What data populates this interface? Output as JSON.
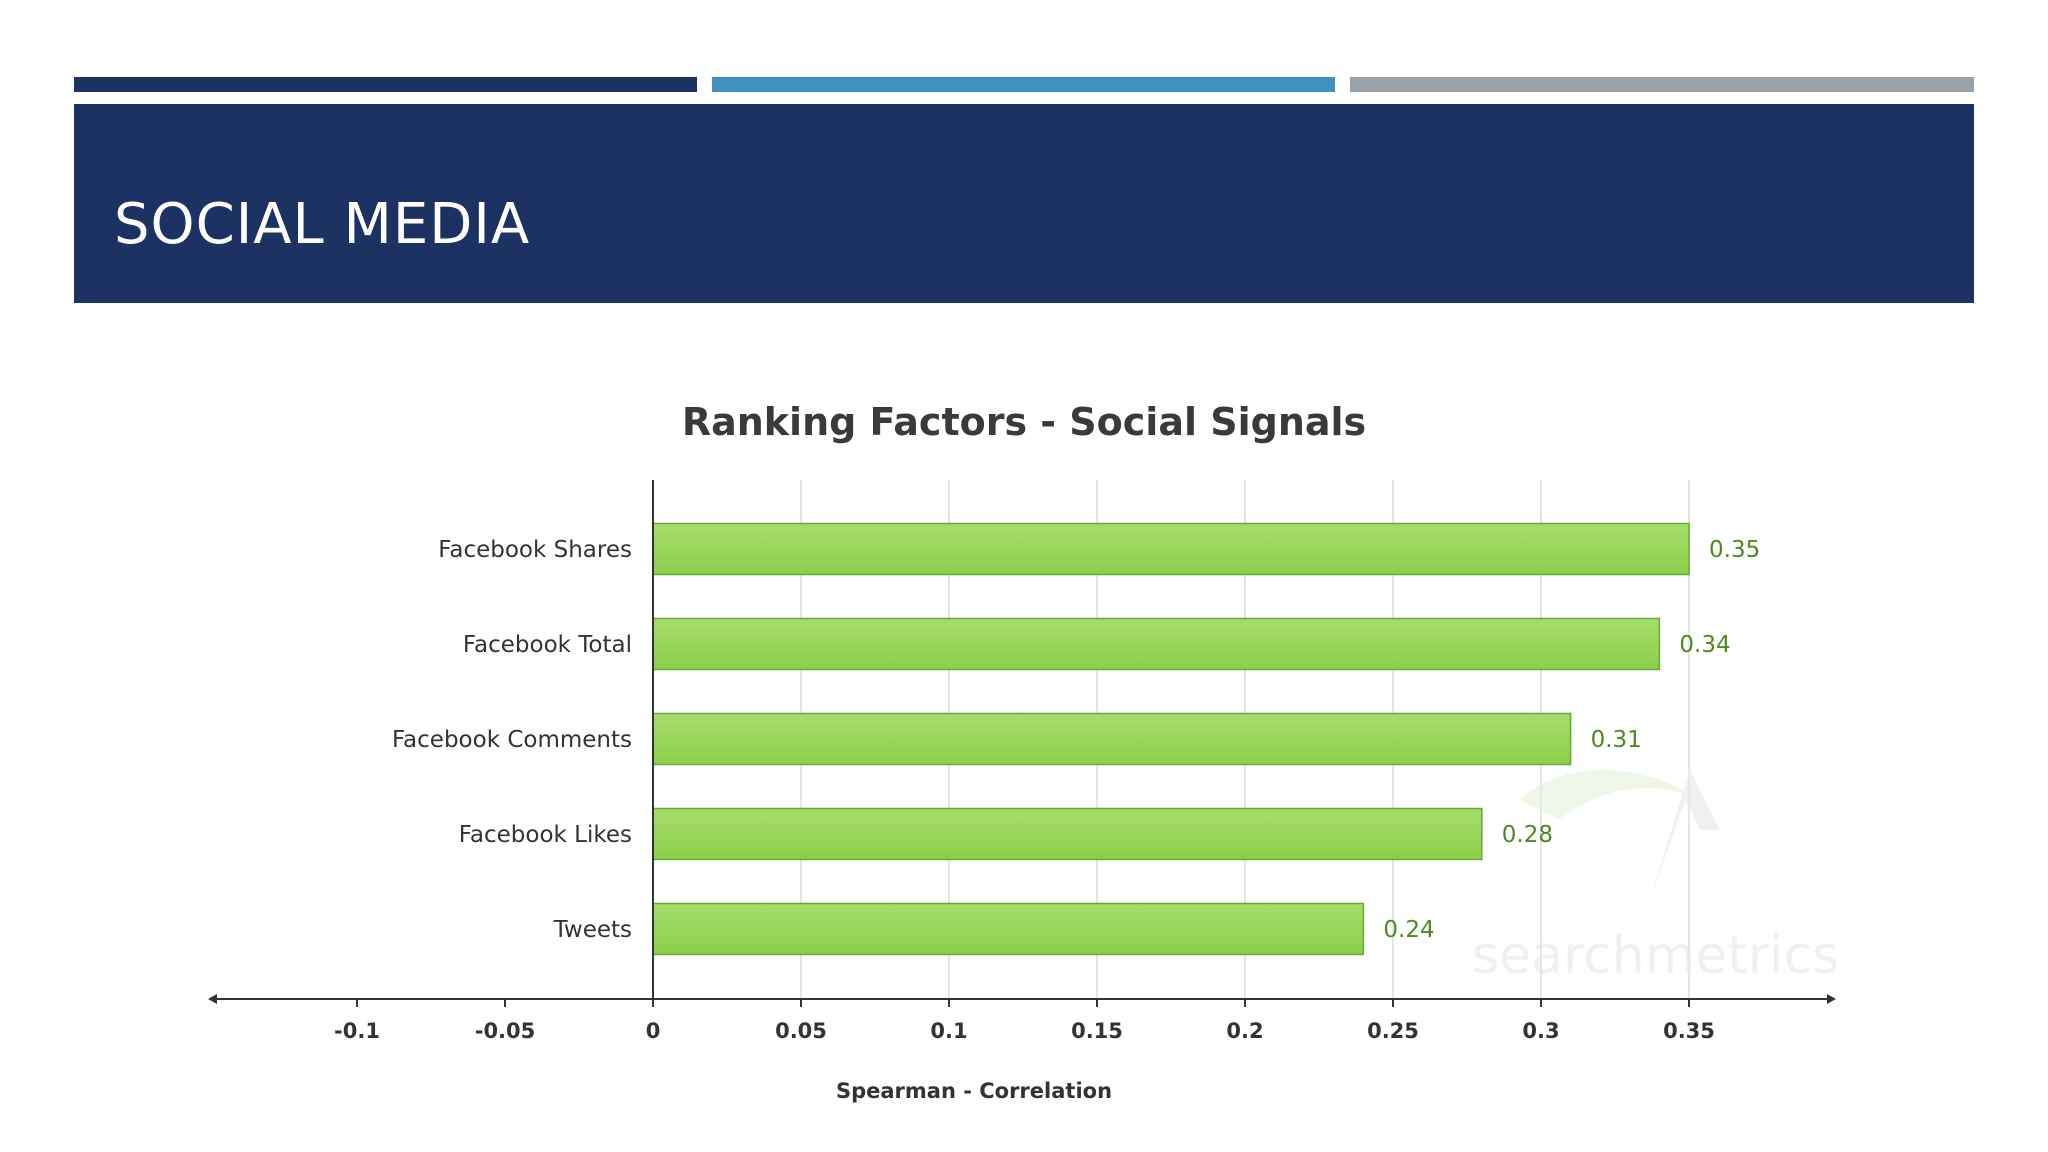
{
  "slide": {
    "title": "SOCIAL MEDIA",
    "colors": {
      "title_band": "#1c3263",
      "accent_dark": "#1c3263",
      "accent_blue": "#3f8fc0",
      "accent_gray": "#99a2a8"
    }
  },
  "chart_data": {
    "type": "bar",
    "orientation": "horizontal",
    "title": "Ranking Factors - Social Signals",
    "xlabel": "Spearman - Correlation",
    "ylabel": "",
    "categories": [
      "Facebook Shares",
      "Facebook Total",
      "Facebook Comments",
      "Facebook Likes",
      "Tweets"
    ],
    "values": [
      0.35,
      0.34,
      0.31,
      0.28,
      0.24
    ],
    "value_labels": [
      "0.35",
      "0.34",
      "0.31",
      "0.28",
      "0.24"
    ],
    "xlim": [
      -0.15,
      0.4
    ],
    "x_ticks": [
      -0.1,
      -0.05,
      0,
      0.05,
      0.1,
      0.15,
      0.2,
      0.25,
      0.3,
      0.35
    ],
    "x_tick_labels": [
      "-0.1",
      "-0.05",
      "0",
      "0.05",
      "0.1",
      "0.15",
      "0.2",
      "0.25",
      "0.3",
      "0.35"
    ],
    "grid": true,
    "colors": {
      "bar": "#8bcf4a",
      "bar_highlight": "#a6dd6a",
      "bar_border": "#6aa83a",
      "value_text": "#4d8a1e",
      "title_text": "#3a3a3a",
      "label_text": "#333333",
      "grid": "#e6e6e6",
      "axis": "#333333"
    },
    "watermark": "searchmetrics"
  }
}
